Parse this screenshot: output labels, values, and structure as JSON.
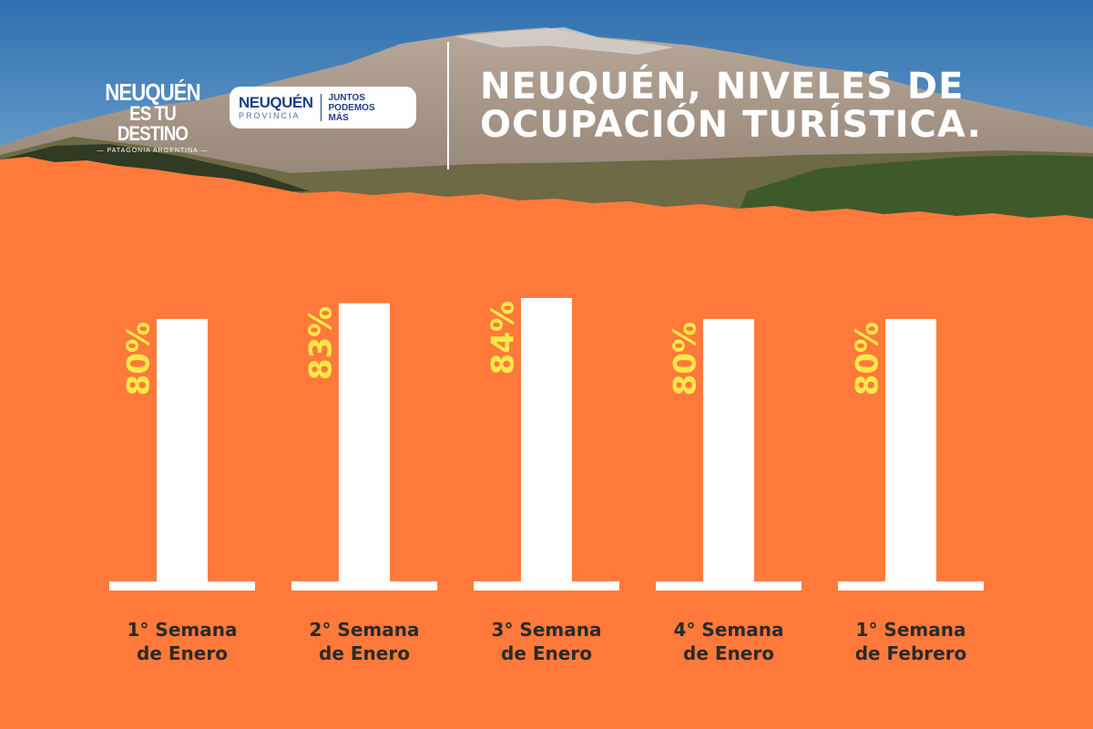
{
  "header": {
    "logo_left": {
      "line1": "NEUQUÉN",
      "line2": "ES TU DESTINO",
      "line3": "— PATAGONIA ARGENTINA —"
    },
    "logo_right": {
      "name": "NEUQUÉN",
      "sub": "PROVINCIA",
      "slogan": "JUNTOS\nPODEMOS\nMÁS"
    },
    "title_line1": "NEUQUÉN, NIVELES DE",
    "title_line2": "OCUPACIÓN TURÍSTICA."
  },
  "colors": {
    "background": "#ff7a3a",
    "bar": "#ffffff",
    "value_label": "#f9e84a",
    "category_text": "#2a2a2a",
    "logo_blue": "#1d3f8a"
  },
  "chart_data": {
    "type": "bar",
    "categories": [
      [
        "1° Semana",
        "de Enero"
      ],
      [
        "2° Semana",
        "de Enero"
      ],
      [
        "3° Semana",
        "de Enero"
      ],
      [
        "4° Semana",
        "de Enero"
      ],
      [
        "1° Semana",
        "de Febrero"
      ]
    ],
    "values": [
      80,
      83,
      84,
      80,
      80
    ],
    "value_labels": [
      "80%",
      "83%",
      "84%",
      "80%",
      "80%"
    ],
    "ylim": [
      30,
      84
    ]
  }
}
